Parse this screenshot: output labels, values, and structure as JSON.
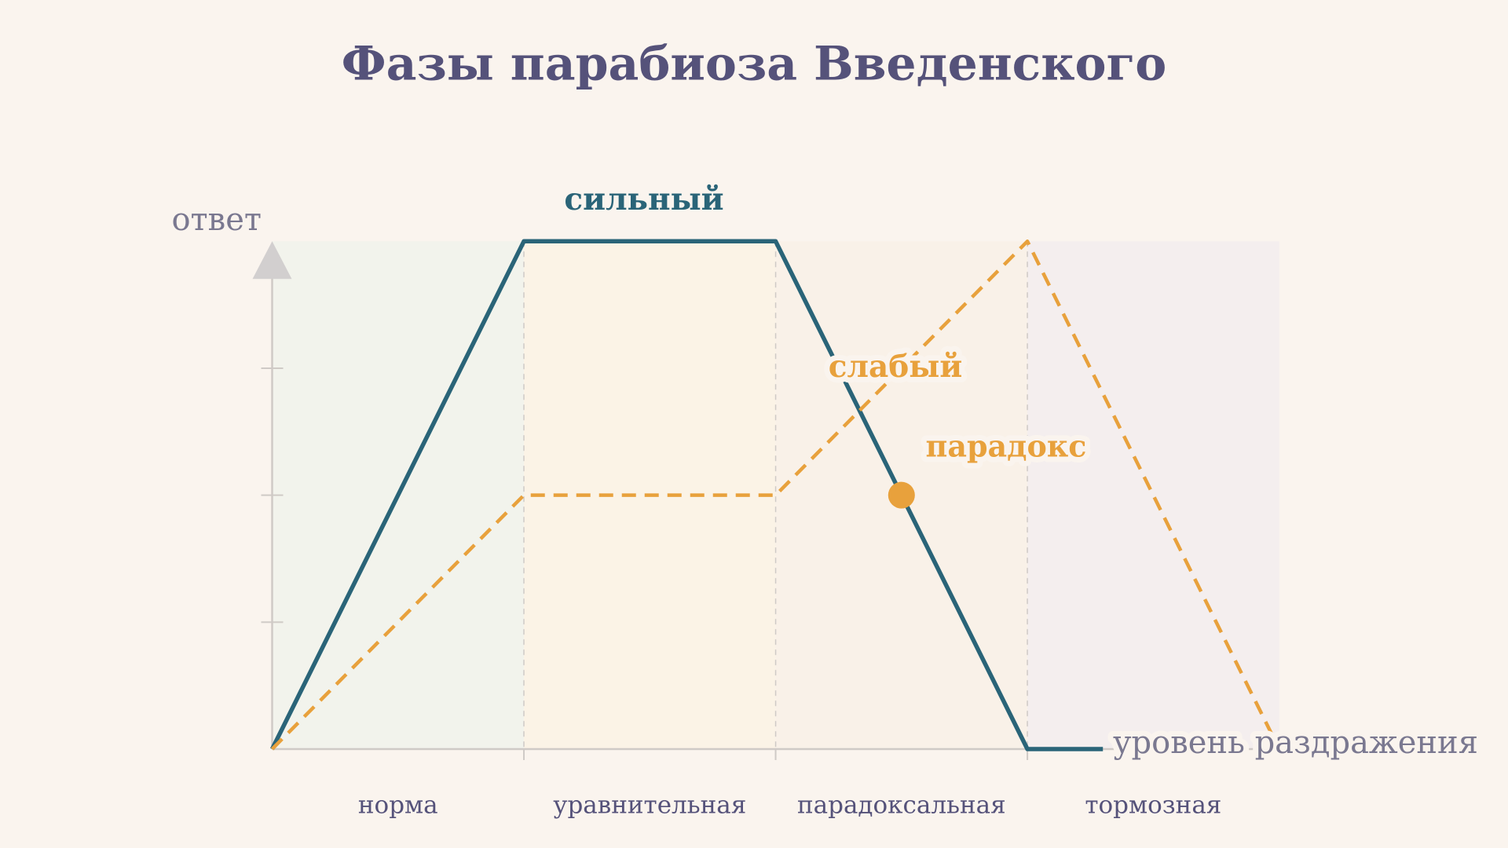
{
  "chart_data": {
    "type": "line",
    "title": "Фазы парабиоза Введенского",
    "y_label": "ответ",
    "x_label": "уровень раздражения",
    "categories": [
      "норма",
      "уравнительная",
      "парадоксальная",
      "тормозная"
    ],
    "band_colors": [
      "#f2f3ec",
      "#fbf3e6",
      "#f9f1e8",
      "#f4eeee"
    ],
    "xlim": [
      0,
      4
    ],
    "ylim": [
      0,
      1
    ],
    "yticks": [
      0.25,
      0.5,
      0.75
    ],
    "series": [
      {
        "name": "сильный",
        "color": "#2a6478",
        "dashed": false,
        "x": [
          0,
          1,
          2,
          3,
          3.3
        ],
        "values": [
          0,
          1,
          1,
          0,
          0
        ]
      },
      {
        "name": "слабый",
        "color": "#e8a13c",
        "dashed": true,
        "x": [
          0,
          1,
          2,
          3,
          4
        ],
        "values": [
          0,
          0.5,
          0.5,
          1,
          0
        ]
      }
    ],
    "annotation": {
      "text": "парадокс",
      "x": 2.5,
      "y": 0.5,
      "color": "#e8a13c"
    }
  }
}
